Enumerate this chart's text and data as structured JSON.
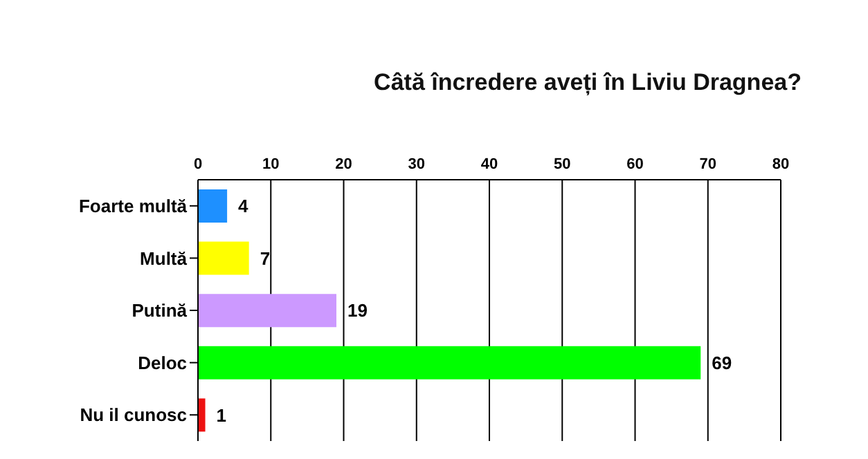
{
  "chart_data": {
    "type": "bar",
    "orientation": "horizontal",
    "title": "Câtă încredere aveți în Liviu Dragnea?",
    "categories": [
      "Foarte multă",
      "Multă",
      "Putină",
      "Deloc",
      "Nu il cunosc"
    ],
    "values": [
      4,
      7,
      19,
      69,
      1
    ],
    "colors": [
      "#1e90ff",
      "#ffff00",
      "#cc99ff",
      "#00ff00",
      "#ee1111"
    ],
    "xlim": [
      0,
      80
    ],
    "xticks": [
      0,
      10,
      20,
      30,
      40,
      50,
      60,
      70,
      80
    ],
    "grid": "x",
    "data_labels": true
  }
}
